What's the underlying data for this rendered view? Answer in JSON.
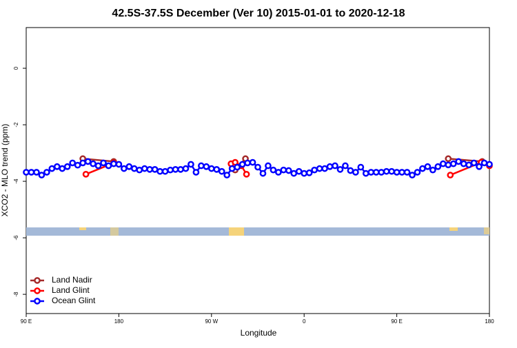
{
  "chart_data": {
    "type": "line",
    "title": "42.5S-37.5S December (Ver 10)   2015-01-01 to 2020-12-18",
    "xlabel": "Longitude",
    "ylabel": "XCO2 - MLO trend (ppm)",
    "xlim": [
      90,
      540
    ],
    "ylim": [
      -8.68,
      1.44
    ],
    "xticks": [
      {
        "value": 90,
        "label": "90 E"
      },
      {
        "value": 180,
        "label": "180"
      },
      {
        "value": 270,
        "label": "90 W"
      },
      {
        "value": 360,
        "label": "0"
      },
      {
        "value": 450,
        "label": "90 E"
      },
      {
        "value": 540,
        "label": "180"
      }
    ],
    "yticks": [
      0,
      -2,
      -4,
      -6,
      -8
    ],
    "legend": "bottom-left",
    "series": [
      {
        "name": "Land Nadir",
        "color": "#a52a2a",
        "x": [
          145,
          175,
          200,
          293,
          303,
          400,
          500,
          533
        ],
        "values": [
          -3.2,
          -3.3,
          null,
          -3.6,
          -3.2,
          null,
          -3.2,
          -3.3
        ]
      },
      {
        "name": "Land Glint",
        "color": "#ff0000",
        "x": [
          148,
          175,
          200,
          289,
          293,
          299,
          304,
          400,
          502,
          532,
          540
        ],
        "values": [
          -3.75,
          -3.35,
          null,
          -3.38,
          -3.33,
          -3.45,
          -3.75,
          null,
          -3.78,
          -3.33,
          -3.45
        ]
      },
      {
        "name": "Ocean Glint",
        "color": "#0000ff",
        "x": [
          90,
          95,
          100,
          105,
          110,
          115,
          120,
          125,
          130,
          135,
          140,
          145,
          150,
          155,
          160,
          165,
          170,
          175,
          180,
          185,
          190,
          195,
          200,
          205,
          210,
          215,
          220,
          225,
          230,
          235,
          240,
          245,
          250,
          255,
          260,
          265,
          270,
          275,
          280,
          285,
          290,
          295,
          300,
          305,
          310,
          315,
          320,
          325,
          330,
          335,
          340,
          345,
          350,
          355,
          360,
          365,
          370,
          375,
          380,
          385,
          390,
          395,
          400,
          405,
          410,
          415,
          420,
          425,
          430,
          435,
          440,
          445,
          450,
          455,
          460,
          465,
          470,
          475,
          480,
          485,
          490,
          495,
          500,
          505,
          510,
          515,
          520,
          525,
          530,
          535,
          540
        ],
        "values": [
          -3.68,
          -3.68,
          -3.68,
          -3.78,
          -3.68,
          -3.55,
          -3.48,
          -3.55,
          -3.48,
          -3.35,
          -3.43,
          -3.35,
          -3.3,
          -3.38,
          -3.45,
          -3.35,
          -3.45,
          -3.38,
          -3.4,
          -3.55,
          -3.48,
          -3.55,
          -3.6,
          -3.55,
          -3.58,
          -3.58,
          -3.65,
          -3.65,
          -3.6,
          -3.58,
          -3.58,
          -3.55,
          -3.4,
          -3.68,
          -3.45,
          -3.48,
          -3.55,
          -3.58,
          -3.65,
          -3.78,
          -3.55,
          -3.5,
          -3.4,
          -3.35,
          -3.33,
          -3.5,
          -3.72,
          -3.45,
          -3.6,
          -3.68,
          -3.6,
          -3.62,
          -3.72,
          -3.65,
          -3.72,
          -3.7,
          -3.6,
          -3.55,
          -3.55,
          -3.48,
          -3.45,
          -3.58,
          -3.45,
          -3.62,
          -3.68,
          -3.5,
          -3.72,
          -3.68,
          -3.68,
          -3.68,
          -3.65,
          -3.65,
          -3.68,
          -3.68,
          -3.68,
          -3.78,
          -3.68,
          -3.55,
          -3.48,
          -3.6,
          -3.48,
          -3.38,
          -3.42,
          -3.38,
          -3.3,
          -3.38,
          -3.42,
          -3.35,
          -3.48,
          -3.35,
          -3.4
        ]
      }
    ]
  }
}
